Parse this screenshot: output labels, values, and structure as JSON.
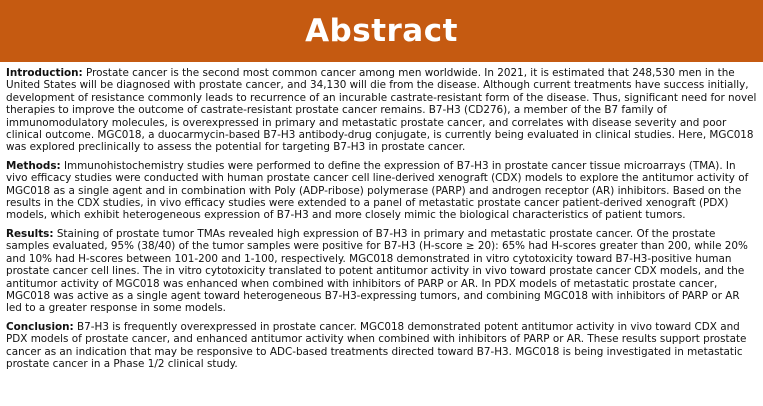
{
  "header": {
    "title": "Abstract",
    "background_color": "#c55a11",
    "text_color": "#ffffff"
  },
  "sections": [
    {
      "label": "Introduction:",
      "text": "Prostate cancer is the second most common cancer among men worldwide. In 2021, it is estimated that 248,530 men in the United States will be diagnosed with prostate cancer, and 34,130 will die from the disease. Although current treatments have success initially, development of resistance commonly leads to recurrence of an incurable castrate-resistant form of the disease. Thus, significant need for novel therapies to improve the outcome of castrate-resistant prostate cancer remains. B7-H3 (CD276), a member of the B7 family of immunomodulatory molecules, is overexpressed in primary and metastatic prostate cancer, and correlates with disease severity and poor clinical outcome. MGC018, a duocarmycin-based B7-H3 antibody-drug conjugate, is currently being evaluated in clinical studies. Here, MGC018 was explored preclinically to assess the potential for targeting B7-H3 in prostate cancer."
    },
    {
      "label": "Methods:",
      "text": "Immunohistochemistry studies were performed to define the expression of B7-H3 in prostate cancer tissue microarrays (TMA). In vivo efficacy studies were conducted with human prostate cancer cell line-derived xenograft (CDX) models to explore the antitumor activity of MGC018 as a single agent and in combination with Poly (ADP-ribose) polymerase (PARP) and androgen receptor (AR) inhibitors. Based on the results in the CDX studies, in vivo efficacy studies were extended to a panel of metastatic prostate cancer patient-derived xenograft (PDX) models, which exhibit heterogeneous expression of B7-H3 and more closely mimic the biological characteristics of patient tumors."
    },
    {
      "label": "Results:",
      "text": "Staining of prostate tumor TMAs revealed high expression of B7-H3 in primary and metastatic prostate cancer. Of the prostate samples evaluated, 95% (38/40) of the tumor samples were positive for B7-H3 (H-score ≥ 20): 65% had H-scores greater than 200, while 20% and 10% had H-scores between 101-200 and 1-100, respectively. MGC018 demonstrated in vitro cytotoxicity toward B7-H3-positive human prostate cancer cell lines. The in vitro cytotoxicity translated to potent antitumor activity in vivo toward prostate cancer CDX models, and the antitumor activity of MGC018 was enhanced when combined with inhibitors of PARP or AR. In PDX models of metastatic prostate cancer, MGC018 was active as a single agent toward heterogeneous B7-H3-expressing tumors, and combining MGC018 with inhibitors of PARP or AR led to a greater response in some models."
    },
    {
      "label": "Conclusion:",
      "text": "B7-H3 is frequently overexpressed in prostate cancer. MGC018 demonstrated potent antitumor activity in vivo toward CDX and PDX models of prostate cancer, and enhanced antitumor activity when combined with inhibitors of PARP or AR. These results support prostate cancer as an indication that may be responsive to ADC-based treatments directed toward B7-H3. MGC018 is being investigated in metastatic prostate cancer in a Phase 1/2 clinical study."
    }
  ]
}
